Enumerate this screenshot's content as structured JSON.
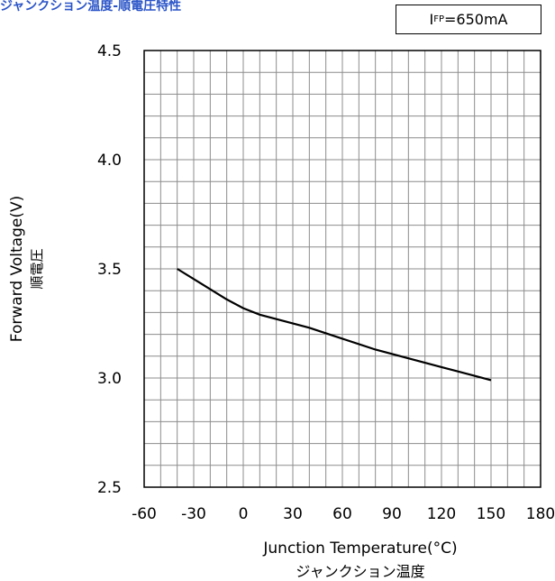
{
  "title": "ジャンクション温度-順電圧特性",
  "condition": {
    "symbol": "I",
    "subscript": "FP",
    "value": "=650mA"
  },
  "colors": {
    "title": "#2b55c8",
    "grid": "#8c8c8c",
    "line": "#000000"
  },
  "chart_data": {
    "type": "line",
    "title": "ジャンクション温度-順電圧特性",
    "xlabel": "Junction Temperature(°C)",
    "xlabel_jp": "ジャンクション温度",
    "ylabel": "Forward Voltage(V)",
    "ylabel_jp": "順電圧",
    "xlim": [
      -60,
      180
    ],
    "ylim": [
      2.5,
      4.5
    ],
    "xticks": [
      "-60",
      "-30",
      "0",
      "30",
      "60",
      "90",
      "120",
      "150",
      "180"
    ],
    "yticks": [
      "4.5",
      "4.0",
      "3.5",
      "3.0",
      "2.5"
    ],
    "grid": true,
    "series": [
      {
        "x": [
          -40,
          -25,
          -10,
          0,
          10,
          25,
          40,
          60,
          80,
          100,
          120,
          140,
          150
        ],
        "y": [
          3.5,
          3.43,
          3.36,
          3.32,
          3.29,
          3.26,
          3.23,
          3.18,
          3.13,
          3.09,
          3.05,
          3.01,
          2.99
        ]
      }
    ]
  }
}
